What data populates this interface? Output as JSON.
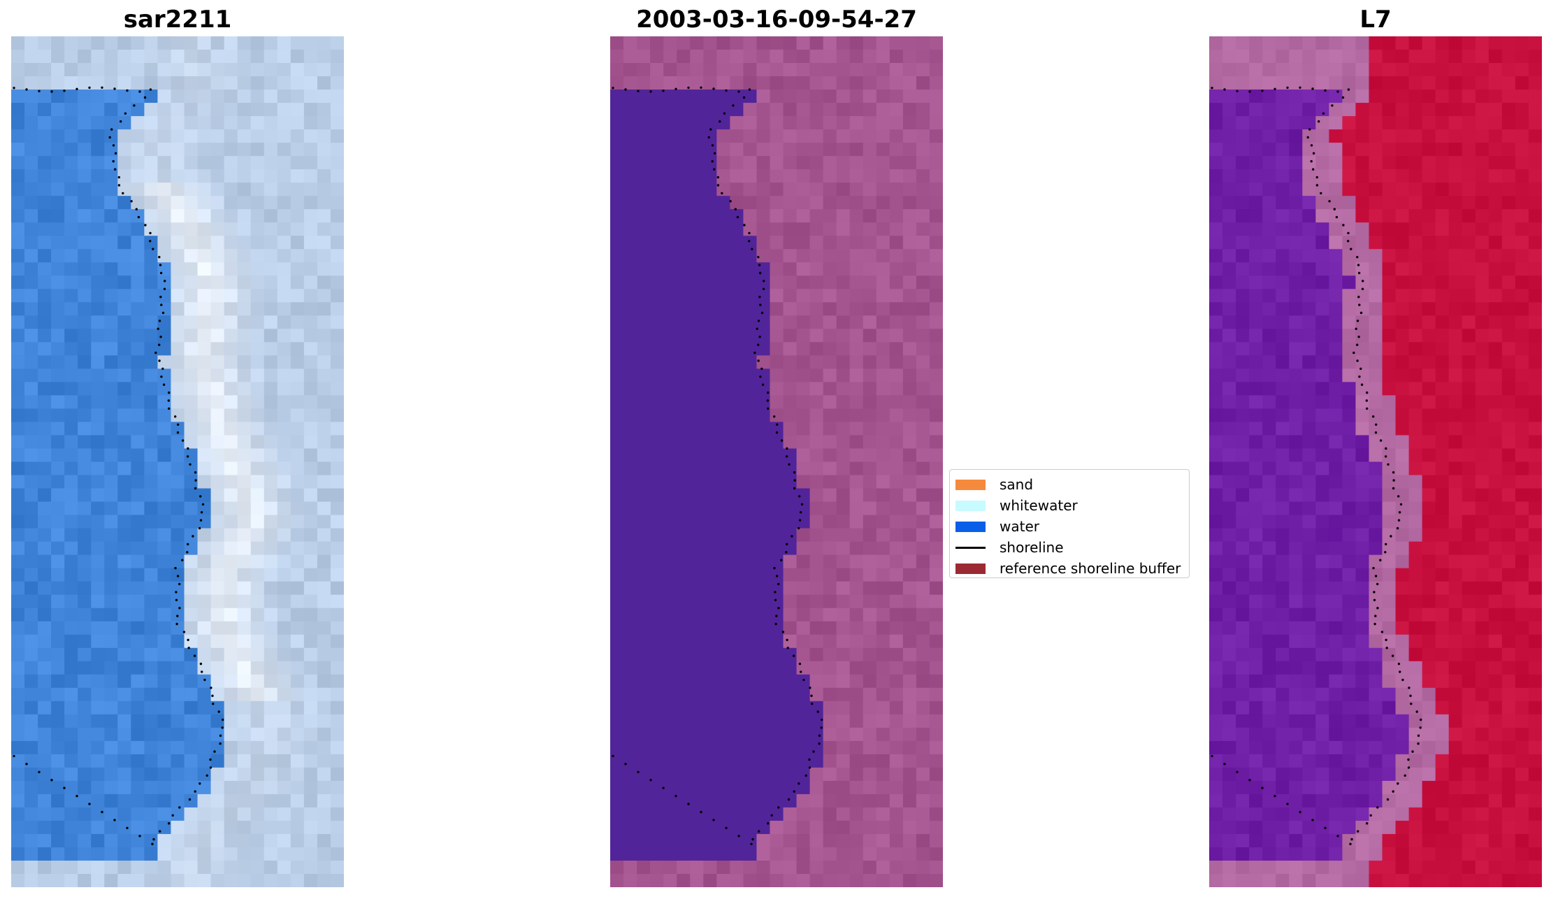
{
  "panels": [
    {
      "title": "sar2211",
      "rendering": "rgb"
    },
    {
      "title": "2003-03-16-09-54-27",
      "rendering": "classified"
    },
    {
      "title": "L7",
      "rendering": "index"
    }
  ],
  "legend": {
    "items": [
      {
        "label": "sand",
        "color": "#f58a3c",
        "kind": "patch"
      },
      {
        "label": "whitewater",
        "color": "#c8fbff",
        "kind": "patch"
      },
      {
        "label": "water",
        "color": "#0a5fe8",
        "kind": "patch"
      },
      {
        "label": "shoreline",
        "color": "#000000",
        "kind": "line"
      },
      {
        "label": "reference shoreline buffer",
        "color": "#9b2a33",
        "kind": "patch"
      }
    ]
  },
  "colors": {
    "water_rgb": "#3f84d8",
    "land_rgb": "#b9cde6",
    "whitewater_rgb": "#f3f6fb",
    "classified_water": "#52249a",
    "classified_land": "#a4558f",
    "index_water": "#6f1ea6",
    "index_land": "#c8103f",
    "index_edge": "#b46aa3"
  }
}
